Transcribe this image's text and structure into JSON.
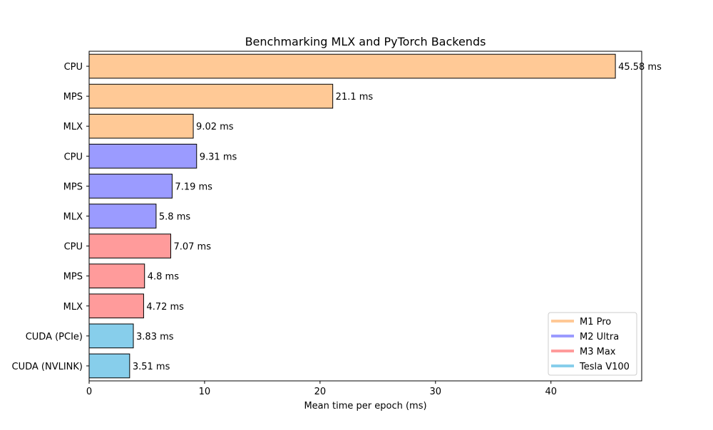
{
  "chart_data": {
    "type": "bar",
    "orientation": "horizontal",
    "title": "Benchmarking MLX and PyTorch Backends",
    "xlabel": "Mean time per epoch (ms)",
    "ylabel": "",
    "xlim": [
      0,
      47.86
    ],
    "xticks": [
      0,
      10,
      20,
      30,
      40
    ],
    "grid": false,
    "value_suffix": " ms",
    "legend_position": "lower-right",
    "categories": [
      "CPU",
      "MPS",
      "MLX",
      "CPU",
      "MPS",
      "MLX",
      "CPU",
      "MPS",
      "MLX",
      "CUDA (PCIe)",
      "CUDA (NVLINK)"
    ],
    "values": [
      45.58,
      21.1,
      9.02,
      9.31,
      7.19,
      5.8,
      7.07,
      4.8,
      4.72,
      3.83,
      3.51
    ],
    "value_labels": [
      "45.58",
      "21.1",
      "9.02",
      "9.31",
      "7.19",
      "5.8",
      "7.07",
      "4.8",
      "4.72",
      "3.83",
      "3.51"
    ],
    "bar_series": [
      0,
      0,
      0,
      1,
      1,
      1,
      2,
      2,
      2,
      3,
      3
    ],
    "series": [
      {
        "name": "M1 Pro",
        "color": "#ffc996"
      },
      {
        "name": "M2 Ultra",
        "color": "#9b9bff"
      },
      {
        "name": "M3 Max",
        "color": "#ff9b9b"
      },
      {
        "name": "Tesla V100",
        "color": "#87ceeb"
      }
    ],
    "bar_edge_color": "#000000"
  }
}
